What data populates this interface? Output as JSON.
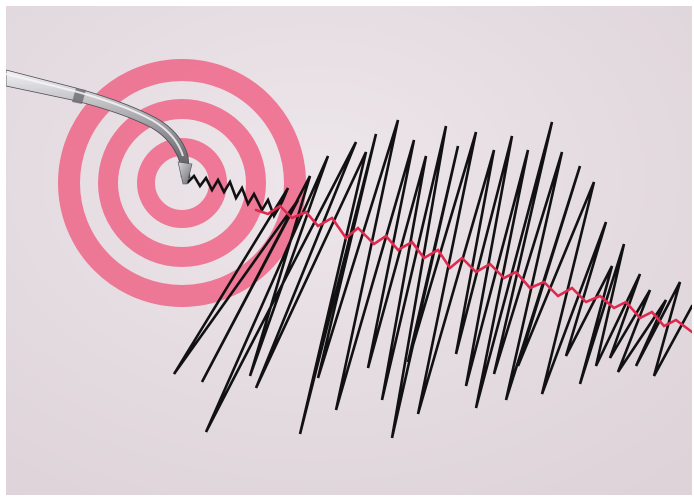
{
  "scene": {
    "subject": "seismograph-needle-drawing-waveform",
    "colors": {
      "paper": "#e6dde2",
      "paper_edge": "#d9cfd5",
      "target_ring": "#ee6f8e",
      "target_ring_soft": "#f5a3b8",
      "waveform_primary": "#111111",
      "waveform_secondary": "#e0284f",
      "needle_metal": "#9a9a9c",
      "needle_highlight": "#e8e8ea",
      "needle_shadow": "#5a5a5e"
    }
  }
}
